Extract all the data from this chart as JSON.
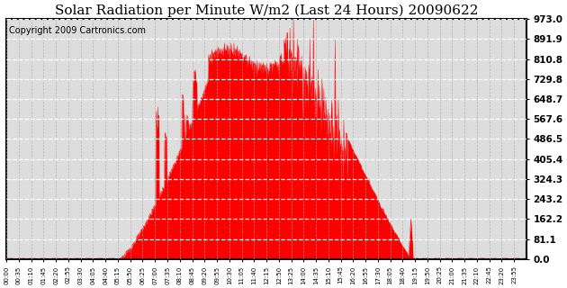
{
  "title": "Solar Radiation per Minute W/m2 (Last 24 Hours) 20090622",
  "copyright_text": "Copyright 2009 Cartronics.com",
  "ytick_labels": [
    "0.0",
    "81.1",
    "162.2",
    "243.2",
    "324.3",
    "405.4",
    "486.5",
    "567.6",
    "648.7",
    "729.8",
    "810.8",
    "891.9",
    "973.0"
  ],
  "ytick_values": [
    0.0,
    81.1,
    162.2,
    243.2,
    324.3,
    405.4,
    486.5,
    567.6,
    648.7,
    729.8,
    810.8,
    891.9,
    973.0
  ],
  "ymax": 973.0,
  "ymin": 0.0,
  "fill_color": "#FF0000",
  "line_color": "#FF0000",
  "dashed_line_color": "#FF0000",
  "grid_h_color": "#FFFFFF",
  "grid_v_color": "#AAAAAA",
  "background_color": "#FFFFFF",
  "plot_bg_color": "#DDDDDD",
  "title_fontsize": 11,
  "copyright_fontsize": 7,
  "xtick_labels": [
    "00:00",
    "00:35",
    "01:10",
    "01:45",
    "02:20",
    "02:55",
    "03:30",
    "04:05",
    "04:40",
    "05:15",
    "05:50",
    "06:25",
    "07:00",
    "07:35",
    "08:10",
    "08:45",
    "09:20",
    "09:55",
    "10:30",
    "11:05",
    "11:40",
    "12:15",
    "12:50",
    "13:25",
    "14:00",
    "14:35",
    "15:10",
    "15:45",
    "16:20",
    "16:55",
    "17:30",
    "18:05",
    "18:40",
    "19:15",
    "19:50",
    "20:25",
    "21:00",
    "21:35",
    "22:10",
    "22:45",
    "23:20",
    "23:55"
  ]
}
